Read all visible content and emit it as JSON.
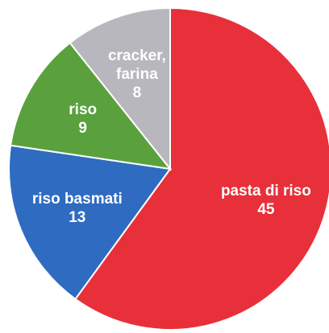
{
  "chart_data": {
    "type": "pie",
    "title": "",
    "start_angle_deg": 0,
    "direction": "clockwise",
    "slices": [
      {
        "label_lines": [
          "pasta di riso"
        ],
        "value": 45,
        "color": "#e8303a",
        "text_color": "#ffffff"
      },
      {
        "label_lines": [
          "riso basmati"
        ],
        "value": 13,
        "color": "#2f6bc1",
        "text_color": "#ffffff"
      },
      {
        "label_lines": [
          "riso"
        ],
        "value": 9,
        "color": "#5aa13d",
        "text_color": "#ffffff"
      },
      {
        "label_lines": [
          "cracker,",
          "farina"
        ],
        "value": 8,
        "color": "#b7b7bd",
        "text_color": "#ffffff"
      }
    ]
  }
}
